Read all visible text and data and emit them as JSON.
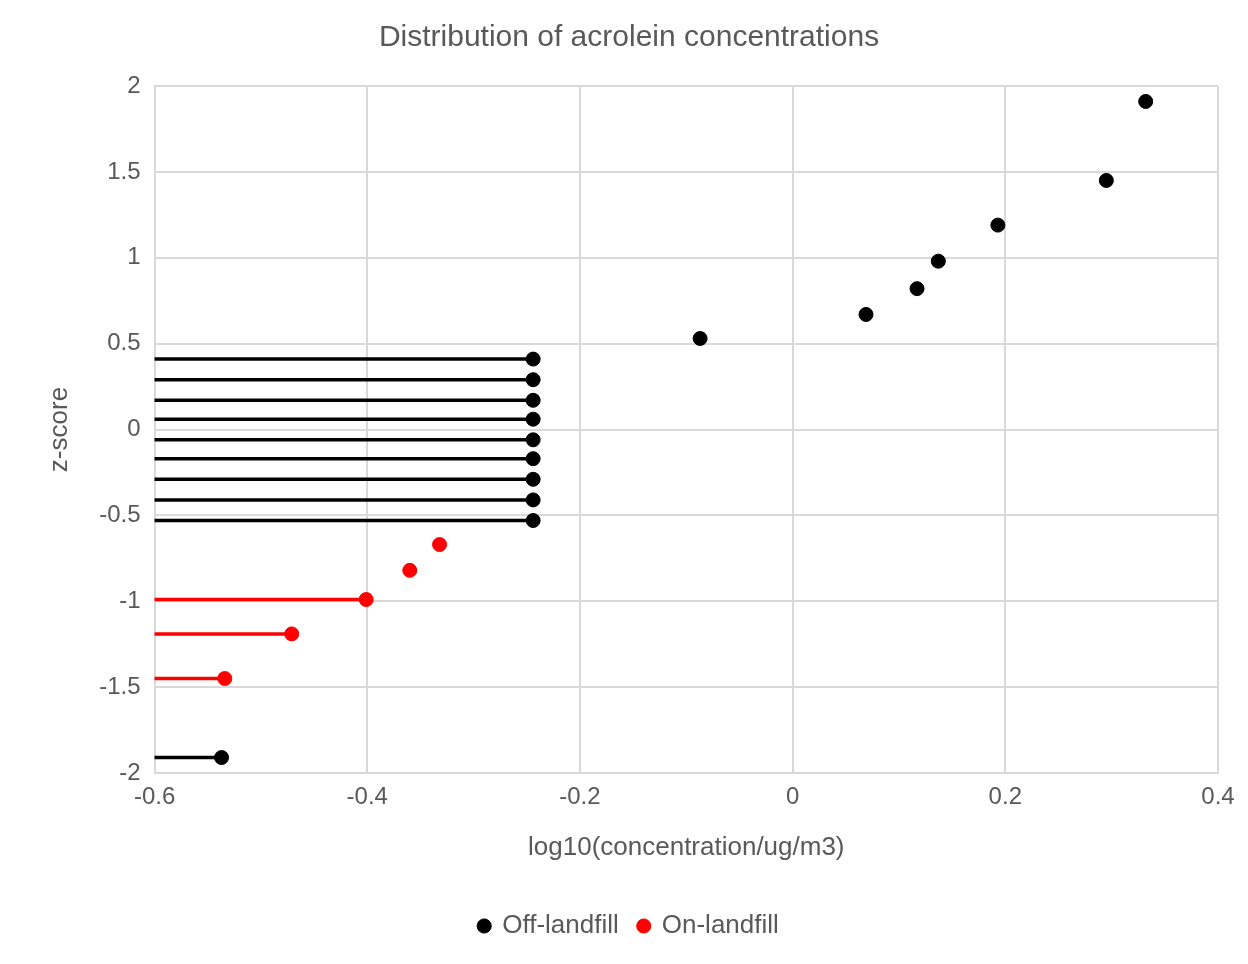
{
  "chart_data": {
    "type": "scatter",
    "title": "Distribution of acrolein concentrations",
    "xlabel": "log10(concentration/ug/m3)",
    "ylabel": "z-score",
    "xlim": [
      -0.6,
      0.4
    ],
    "xticks": [
      -0.6,
      -0.4,
      -0.2,
      0,
      0.2,
      0.4
    ],
    "ylim": [
      -2,
      2
    ],
    "yticks": [
      -2,
      -1.5,
      -1,
      -0.5,
      0,
      0.5,
      1,
      1.5,
      2
    ],
    "grid": true,
    "legend": "bottom",
    "marker": "circle",
    "series": [
      {
        "name": "Off-landfill",
        "color": "#000000",
        "x": [
          -0.537,
          -0.244,
          -0.244,
          -0.244,
          -0.244,
          -0.244,
          -0.244,
          -0.244,
          -0.244,
          -0.244,
          -0.087,
          0.069,
          0.117,
          0.137,
          0.193,
          0.295,
          0.332
        ],
        "values": [
          -1.91,
          -0.53,
          -0.41,
          -0.29,
          -0.17,
          -0.06,
          0.06,
          0.17,
          0.29,
          0.41,
          0.53,
          0.67,
          0.82,
          0.98,
          1.19,
          1.45,
          1.91
        ],
        "xerrors": [
          [
            -0.6,
            -0.537
          ],
          [
            -0.6,
            -0.244
          ],
          [
            -0.6,
            -0.244
          ],
          [
            -0.6,
            -0.244
          ],
          [
            -0.6,
            -0.244
          ],
          [
            -0.6,
            -0.244
          ],
          [
            -0.6,
            -0.244
          ],
          [
            -0.6,
            -0.244
          ],
          [
            -0.6,
            -0.244
          ],
          [
            -0.6,
            -0.244
          ],
          null,
          null,
          null,
          null,
          null,
          null,
          null
        ]
      },
      {
        "name": "On-landfill",
        "color": "#ff0000",
        "x": [
          -0.534,
          -0.471,
          -0.401,
          -0.36,
          -0.332
        ],
        "values": [
          -1.45,
          -1.19,
          -0.99,
          -0.82,
          -0.67
        ],
        "xerrors": [
          [
            -0.6,
            -0.534
          ],
          [
            -0.6,
            -0.471
          ],
          [
            -0.6,
            -0.401
          ],
          null,
          null
        ]
      }
    ]
  }
}
